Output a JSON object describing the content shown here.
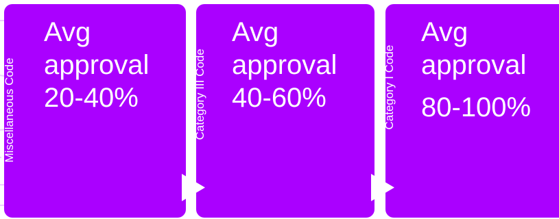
{
  "stages": [
    {
      "side_label": "Miscellaneous Code",
      "line1": "Avg",
      "line2": "approval",
      "range": "20-40%"
    },
    {
      "side_label": "Category III Code",
      "line1": "Avg",
      "line2": "approval",
      "range": "40-60%"
    },
    {
      "side_label": "Category I Code",
      "line1": "Avg",
      "line2": "approval",
      "range": "80-100%"
    }
  ],
  "colors": {
    "card": "#aa00ff",
    "text": "#ffffff",
    "arrow": "#ffffff"
  }
}
